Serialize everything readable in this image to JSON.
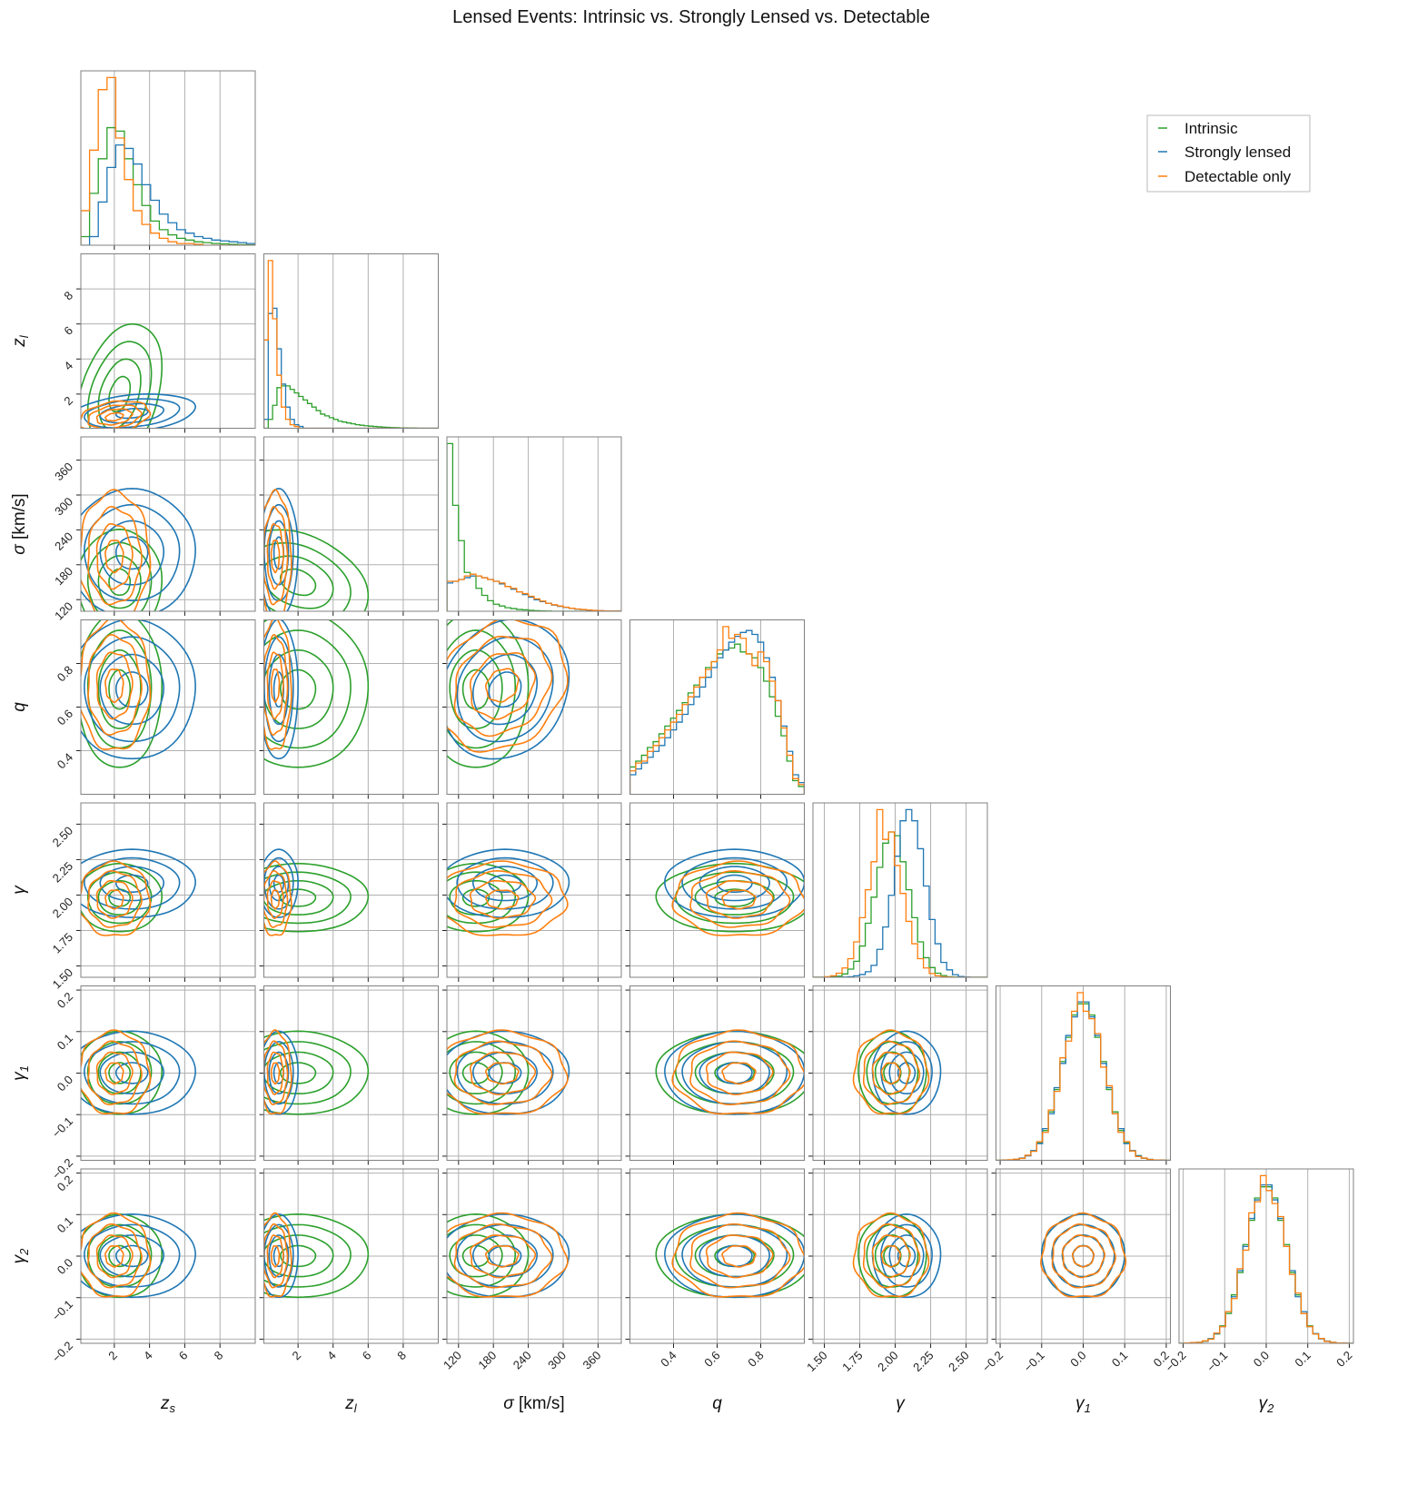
{
  "chart_data": {
    "type": "corner",
    "title": "Lensed Events: Intrinsic vs. Strongly Lensed vs. Detectable",
    "legend": {
      "placement": "top-right",
      "entries": [
        "Intrinsic",
        "Strongly lensed",
        "Detectable only"
      ]
    },
    "grid": true,
    "contour_levels_sigma": [
      0.5,
      1.0,
      1.5,
      2.0
    ],
    "series": [
      {
        "name": "Intrinsic",
        "color": "#2ca02c"
      },
      {
        "name": "Strongly lensed",
        "color": "#1f77b4"
      },
      {
        "name": "Detectable only",
        "color": "#ff7f0e"
      }
    ],
    "variables": [
      {
        "key": "zs",
        "label": {
          "main": "z",
          "sub": "s",
          "unit": ""
        },
        "range": [
          0.1,
          10
        ],
        "ticks": [
          2,
          4,
          6,
          8
        ],
        "tick_labels": [
          "2",
          "4",
          "6",
          "8"
        ],
        "hist": [
          [
            0.05,
            0.3,
            0.5,
            0.68,
            0.66,
            0.5,
            0.35,
            0.23,
            0.14,
            0.09,
            0.06,
            0.04,
            0.03,
            0.02,
            0.015,
            0.01,
            0.008,
            0.005,
            0.003,
            0.002
          ],
          [
            0,
            0.05,
            0.25,
            0.45,
            0.58,
            0.56,
            0.47,
            0.35,
            0.26,
            0.18,
            0.13,
            0.09,
            0.07,
            0.05,
            0.04,
            0.03,
            0.025,
            0.02,
            0.015,
            0.01
          ],
          [
            0.2,
            0.55,
            0.9,
            0.97,
            0.62,
            0.38,
            0.2,
            0.12,
            0.07,
            0.04,
            0.02,
            0.01,
            0.01,
            0.005,
            0,
            0,
            0,
            0,
            0,
            0
          ]
        ],
        "center": [
          2.3,
          3.0,
          2.0
        ],
        "spread": [
          1.2,
          1.8,
          1.0
        ]
      },
      {
        "key": "zl",
        "label": {
          "main": "z",
          "sub": "l",
          "unit": ""
        },
        "range": [
          0.05,
          10
        ],
        "ticks": [
          2,
          4,
          6,
          8
        ],
        "tick_labels": [
          "2",
          "4",
          "6",
          "8"
        ],
        "hist": [
          [
            0,
            0.05,
            0.13,
            0.23,
            0.24,
            0.24,
            0.22,
            0.2,
            0.18,
            0.16,
            0.14,
            0.12,
            0.1,
            0.08,
            0.07,
            0.06,
            0.05,
            0.04,
            0.035,
            0.03,
            0.025,
            0.02,
            0.017,
            0.014,
            0.012,
            0.01,
            0.008,
            0.006,
            0.005,
            0.004,
            0.003,
            0.002,
            0.002,
            0.001,
            0.001,
            0,
            0,
            0,
            0,
            0
          ],
          [
            0.05,
            0.65,
            0.68,
            0.45,
            0.25,
            0.12,
            0.05,
            0.02,
            0.01,
            0,
            0,
            0,
            0,
            0,
            0,
            0,
            0,
            0,
            0,
            0,
            0,
            0,
            0,
            0,
            0,
            0,
            0,
            0,
            0,
            0,
            0,
            0,
            0,
            0,
            0,
            0,
            0,
            0,
            0,
            0
          ],
          [
            0.5,
            0.95,
            0.62,
            0.3,
            0.12,
            0.05,
            0.02,
            0.01,
            0,
            0,
            0,
            0,
            0,
            0,
            0,
            0,
            0,
            0,
            0,
            0,
            0,
            0,
            0,
            0,
            0,
            0,
            0,
            0,
            0,
            0,
            0,
            0,
            0,
            0,
            0,
            0,
            0,
            0,
            0,
            0
          ]
        ],
        "center": [
          2.0,
          0.9,
          0.7
        ],
        "spread": [
          2.0,
          0.55,
          0.45
        ]
      },
      {
        "key": "sigma",
        "label": {
          "main": "σ",
          "sub": "",
          "unit": " [km/s]"
        },
        "range": [
          100,
          400
        ],
        "ticks": [
          120,
          180,
          240,
          300,
          360
        ],
        "tick_labels": [
          "120",
          "180",
          "240",
          "300",
          "360"
        ],
        "hist": [
          [
            0.95,
            0.6,
            0.4,
            0.22,
            0.2,
            0.13,
            0.09,
            0.06,
            0.04,
            0.03,
            0.02,
            0.015,
            0.01,
            0.008,
            0.005,
            0.003,
            0.002,
            0.001,
            0,
            0,
            0,
            0,
            0,
            0,
            0,
            0,
            0,
            0,
            0,
            0
          ],
          [
            0.16,
            0.17,
            0.18,
            0.19,
            0.2,
            0.2,
            0.19,
            0.18,
            0.17,
            0.155,
            0.14,
            0.125,
            0.11,
            0.095,
            0.08,
            0.065,
            0.055,
            0.045,
            0.035,
            0.028,
            0.022,
            0.016,
            0.012,
            0.009,
            0.006,
            0.004,
            0.003,
            0.002,
            0.001,
            0.001
          ],
          [
            0.17,
            0.17,
            0.18,
            0.2,
            0.21,
            0.2,
            0.19,
            0.18,
            0.17,
            0.16,
            0.14,
            0.13,
            0.11,
            0.1,
            0.085,
            0.07,
            0.058,
            0.045,
            0.037,
            0.03,
            0.023,
            0.017,
            0.013,
            0.01,
            0.007,
            0.005,
            0.003,
            0.002,
            0.001,
            0.001
          ]
        ],
        "center": [
          150,
          200,
          195
        ],
        "spread": [
          45,
          55,
          55
        ]
      },
      {
        "key": "q",
        "label": {
          "main": "q",
          "sub": "",
          "unit": ""
        },
        "range": [
          0.2,
          1.0
        ],
        "ticks": [
          0.4,
          0.6,
          0.8
        ],
        "tick_labels": [
          "0.4",
          "0.6",
          "0.8"
        ],
        "hist": [
          [
            0.14,
            0.17,
            0.2,
            0.24,
            0.27,
            0.31,
            0.35,
            0.39,
            0.43,
            0.47,
            0.52,
            0.56,
            0.6,
            0.65,
            0.68,
            0.72,
            0.74,
            0.75,
            0.77,
            0.73,
            0.72,
            0.7,
            0.65,
            0.58,
            0.5,
            0.4,
            0.3,
            0.17,
            0.07,
            0.04
          ],
          [
            0.1,
            0.13,
            0.16,
            0.19,
            0.22,
            0.25,
            0.29,
            0.33,
            0.37,
            0.41,
            0.46,
            0.5,
            0.55,
            0.6,
            0.65,
            0.7,
            0.74,
            0.78,
            0.81,
            0.83,
            0.84,
            0.82,
            0.78,
            0.7,
            0.6,
            0.48,
            0.35,
            0.22,
            0.1,
            0.06
          ],
          [
            0.12,
            0.16,
            0.17,
            0.22,
            0.25,
            0.29,
            0.33,
            0.37,
            0.41,
            0.46,
            0.5,
            0.55,
            0.6,
            0.64,
            0.68,
            0.74,
            0.86,
            0.8,
            0.82,
            0.8,
            0.72,
            0.66,
            0.73,
            0.68,
            0.58,
            0.48,
            0.34,
            0.2,
            0.08,
            0.05
          ]
        ],
        "center": [
          0.68,
          0.68,
          0.7
        ],
        "spread": [
          0.18,
          0.16,
          0.15
        ]
      },
      {
        "key": "gamma",
        "label": {
          "main": "γ",
          "sub": "",
          "unit": ""
        },
        "range": [
          1.42,
          2.65
        ],
        "ticks": [
          1.5,
          1.75,
          2.0,
          2.25,
          2.5
        ],
        "tick_labels": [
          "1.50",
          "1.75",
          "2.00",
          "2.25",
          "2.50"
        ],
        "hist": [
          [
            0,
            0,
            0,
            0.002,
            0.006,
            0.018,
            0.044,
            0.086,
            0.168,
            0.29,
            0.43,
            0.59,
            0.72,
            0.78,
            0.76,
            0.62,
            0.47,
            0.32,
            0.19,
            0.105,
            0.052,
            0.022,
            0.009,
            0.003,
            0.001,
            0,
            0,
            0,
            0,
            0
          ],
          [
            0,
            0,
            0,
            0,
            0,
            0.001,
            0.003,
            0.008,
            0.015,
            0.03,
            0.064,
            0.15,
            0.27,
            0.44,
            0.65,
            0.84,
            0.9,
            0.84,
            0.69,
            0.49,
            0.31,
            0.18,
            0.08,
            0.04,
            0.014,
            0.004,
            0.001,
            0,
            0,
            0
          ],
          [
            0,
            0,
            0.003,
            0.008,
            0.022,
            0.05,
            0.1,
            0.19,
            0.32,
            0.47,
            0.62,
            0.9,
            0.74,
            0.78,
            0.6,
            0.45,
            0.3,
            0.18,
            0.1,
            0.05,
            0.02,
            0.008,
            0.003,
            0.001,
            0,
            0,
            0,
            0,
            0,
            0
          ]
        ],
        "center": [
          1.98,
          2.08,
          1.97
        ],
        "spread": [
          0.12,
          0.12,
          0.13
        ]
      },
      {
        "key": "gamma1",
        "label": {
          "main": "γ",
          "sub": "1",
          "unit": ""
        },
        "range": [
          -0.21,
          0.21
        ],
        "ticks": [
          -0.2,
          -0.1,
          0.0,
          0.1,
          0.2
        ],
        "tick_labels": [
          "−0.2",
          "−0.1",
          "0.0",
          "0.1",
          "0.2"
        ],
        "hist": [
          [
            0,
            0.001,
            0.002,
            0.005,
            0.011,
            0.025,
            0.05,
            0.094,
            0.16,
            0.26,
            0.38,
            0.53,
            0.66,
            0.78,
            0.84,
            0.84,
            0.78,
            0.66,
            0.53,
            0.38,
            0.26,
            0.16,
            0.094,
            0.05,
            0.025,
            0.011,
            0.005,
            0.002,
            0.001,
            0
          ],
          [
            0,
            0.001,
            0.002,
            0.005,
            0.012,
            0.024,
            0.052,
            0.09,
            0.17,
            0.25,
            0.39,
            0.52,
            0.67,
            0.77,
            0.85,
            0.85,
            0.77,
            0.67,
            0.52,
            0.39,
            0.25,
            0.17,
            0.09,
            0.052,
            0.024,
            0.012,
            0.005,
            0.002,
            0.001,
            0
          ],
          [
            0,
            0.001,
            0.003,
            0.006,
            0.01,
            0.027,
            0.048,
            0.1,
            0.15,
            0.27,
            0.37,
            0.55,
            0.64,
            0.8,
            0.9,
            0.8,
            0.76,
            0.68,
            0.5,
            0.4,
            0.25,
            0.15,
            0.1,
            0.05,
            0.02,
            0.012,
            0.004,
            0.002,
            0.001,
            0
          ]
        ],
        "center": [
          0.0,
          0.0,
          0.0
        ],
        "spread": [
          0.05,
          0.05,
          0.05
        ]
      },
      {
        "key": "gamma2",
        "label": {
          "main": "γ",
          "sub": "2",
          "unit": ""
        },
        "range": [
          -0.21,
          0.21
        ],
        "ticks": [
          -0.2,
          -0.1,
          0.0,
          0.1,
          0.2
        ],
        "tick_labels": [
          "−0.2",
          "−0.1",
          "0.0",
          "0.1",
          "0.2"
        ],
        "hist": [
          [
            0,
            0.001,
            0.002,
            0.005,
            0.011,
            0.025,
            0.05,
            0.094,
            0.16,
            0.26,
            0.38,
            0.53,
            0.66,
            0.78,
            0.84,
            0.84,
            0.78,
            0.66,
            0.53,
            0.38,
            0.26,
            0.16,
            0.094,
            0.05,
            0.025,
            0.011,
            0.005,
            0.002,
            0.001,
            0
          ],
          [
            0,
            0.001,
            0.002,
            0.005,
            0.012,
            0.024,
            0.052,
            0.09,
            0.17,
            0.25,
            0.39,
            0.52,
            0.67,
            0.77,
            0.85,
            0.85,
            0.77,
            0.67,
            0.52,
            0.39,
            0.25,
            0.17,
            0.09,
            0.052,
            0.024,
            0.012,
            0.005,
            0.002,
            0.001,
            0
          ],
          [
            0,
            0.002,
            0.004,
            0.005,
            0.013,
            0.022,
            0.055,
            0.09,
            0.17,
            0.24,
            0.4,
            0.5,
            0.7,
            0.76,
            0.9,
            0.82,
            0.75,
            0.68,
            0.52,
            0.37,
            0.27,
            0.16,
            0.09,
            0.05,
            0.026,
            0.01,
            0.005,
            0.002,
            0.001,
            0
          ]
        ],
        "center": [
          0.0,
          0.0,
          0.0
        ],
        "spread": [
          0.05,
          0.05,
          0.05
        ]
      }
    ],
    "correlations": [
      {
        "pair": [
          "zs",
          "zl"
        ],
        "rho": [
          0.35,
          0.3,
          0.3
        ]
      },
      {
        "pair": [
          "zl",
          "sigma"
        ],
        "rho": [
          -0.3,
          0.0,
          0.0
        ]
      },
      {
        "pair": [
          "sigma",
          "q"
        ],
        "rho": [
          0.0,
          0.15,
          0.2
        ]
      }
    ]
  }
}
